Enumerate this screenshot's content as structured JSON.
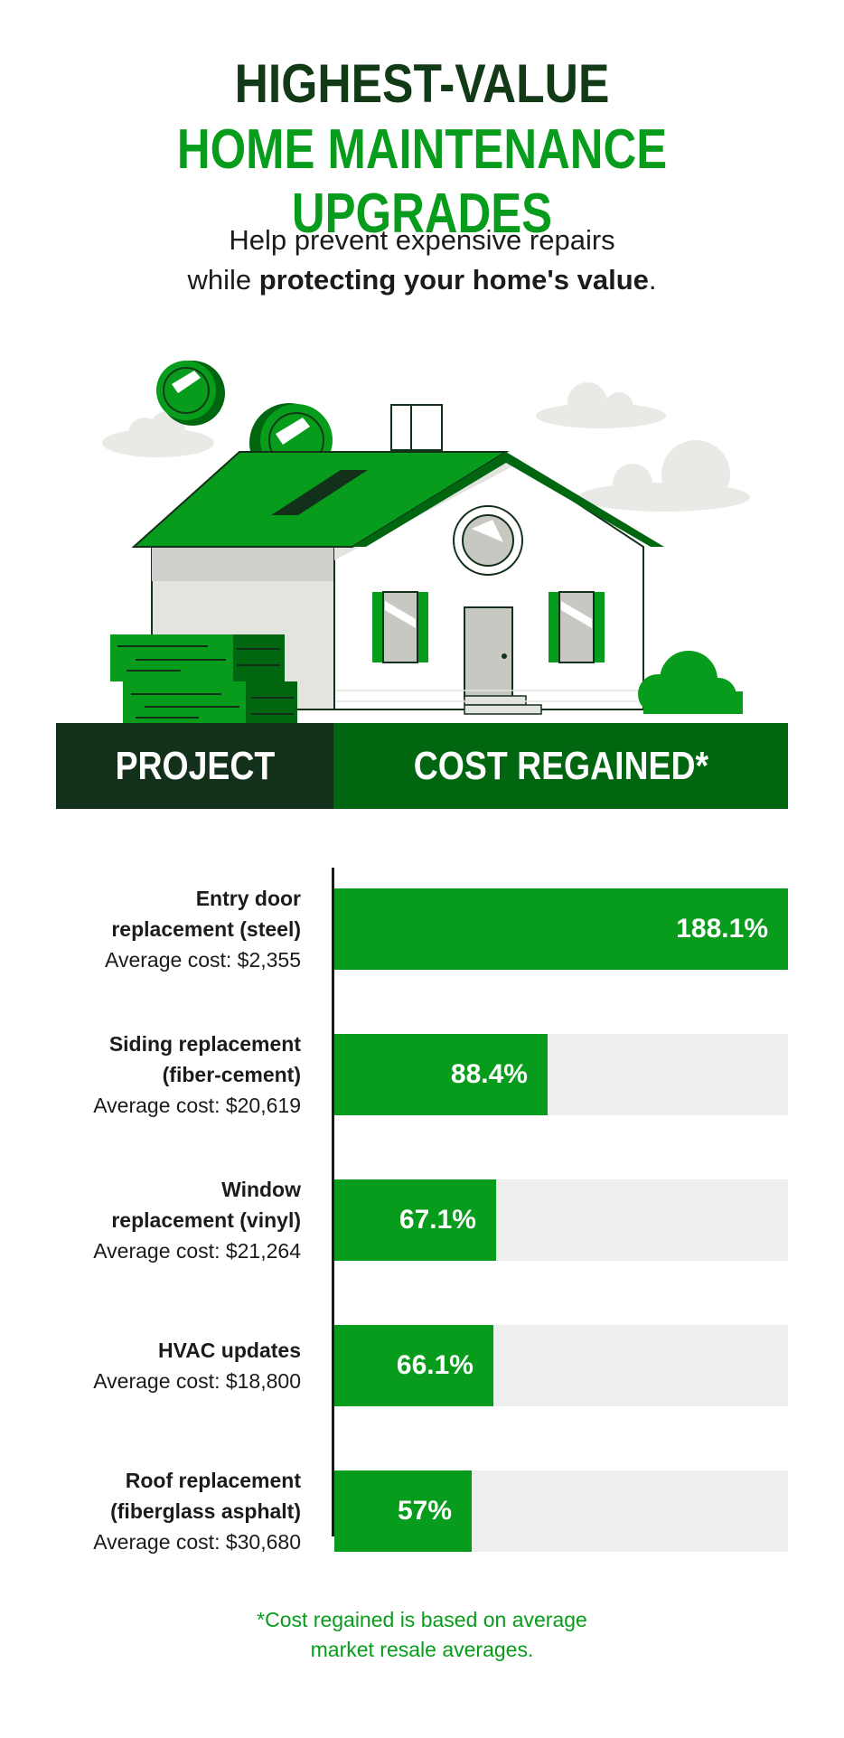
{
  "header": {
    "title_line1": "HIGHEST-VALUE",
    "title_line2": "HOME MAINTENANCE UPGRADES",
    "subtitle_line1": "Help prevent expensive repairs",
    "subtitle_line2_prefix": "while ",
    "subtitle_line2_bold": "protecting your home's value",
    "subtitle_line2_suffix": "."
  },
  "table_header": {
    "project": "PROJECT",
    "cost_regained": "COST REGAINED*"
  },
  "colors": {
    "dark_green": "#13301a",
    "mid_green": "#00660f",
    "bright_green": "#079c1b",
    "track_gray": "#eeeeee"
  },
  "chart_data": {
    "type": "bar",
    "orientation": "horizontal",
    "categories": [
      "Entry door replacement (steel)",
      "Siding replacement (fiber-cement)",
      "Window replacement (vinyl)",
      "HVAC updates",
      "Roof replacement (fiberglass asphalt)"
    ],
    "values": [
      188.1,
      88.4,
      67.1,
      66.1,
      57
    ],
    "value_labels": [
      "188.1%",
      "88.4%",
      "67.1%",
      "66.1%",
      "57%"
    ],
    "subtitles": [
      "Average cost: $2,355",
      "Average cost: $20,619",
      "Average cost: $21,264",
      "Average cost: $18,800",
      "Average cost: $30,680"
    ],
    "xlim": [
      0,
      188.1
    ],
    "grid": false,
    "legend": "none"
  },
  "rows": [
    {
      "name_lines": [
        "Entry door",
        "replacement (steel)"
      ],
      "cost": "Average cost: $2,355"
    },
    {
      "name_lines": [
        "Siding replacement",
        "(fiber-cement)"
      ],
      "cost": "Average cost: $20,619"
    },
    {
      "name_lines": [
        "Window",
        "replacement (vinyl)"
      ],
      "cost": "Average cost: $21,264"
    },
    {
      "name_lines": [
        "HVAC updates"
      ],
      "cost": "Average cost: $18,800"
    },
    {
      "name_lines": [
        "Roof replacement",
        "(fiberglass asphalt)"
      ],
      "cost": "Average cost: $30,680"
    }
  ],
  "footnote": {
    "line1": "*Cost regained is based on average",
    "line2": "market resale averages."
  }
}
